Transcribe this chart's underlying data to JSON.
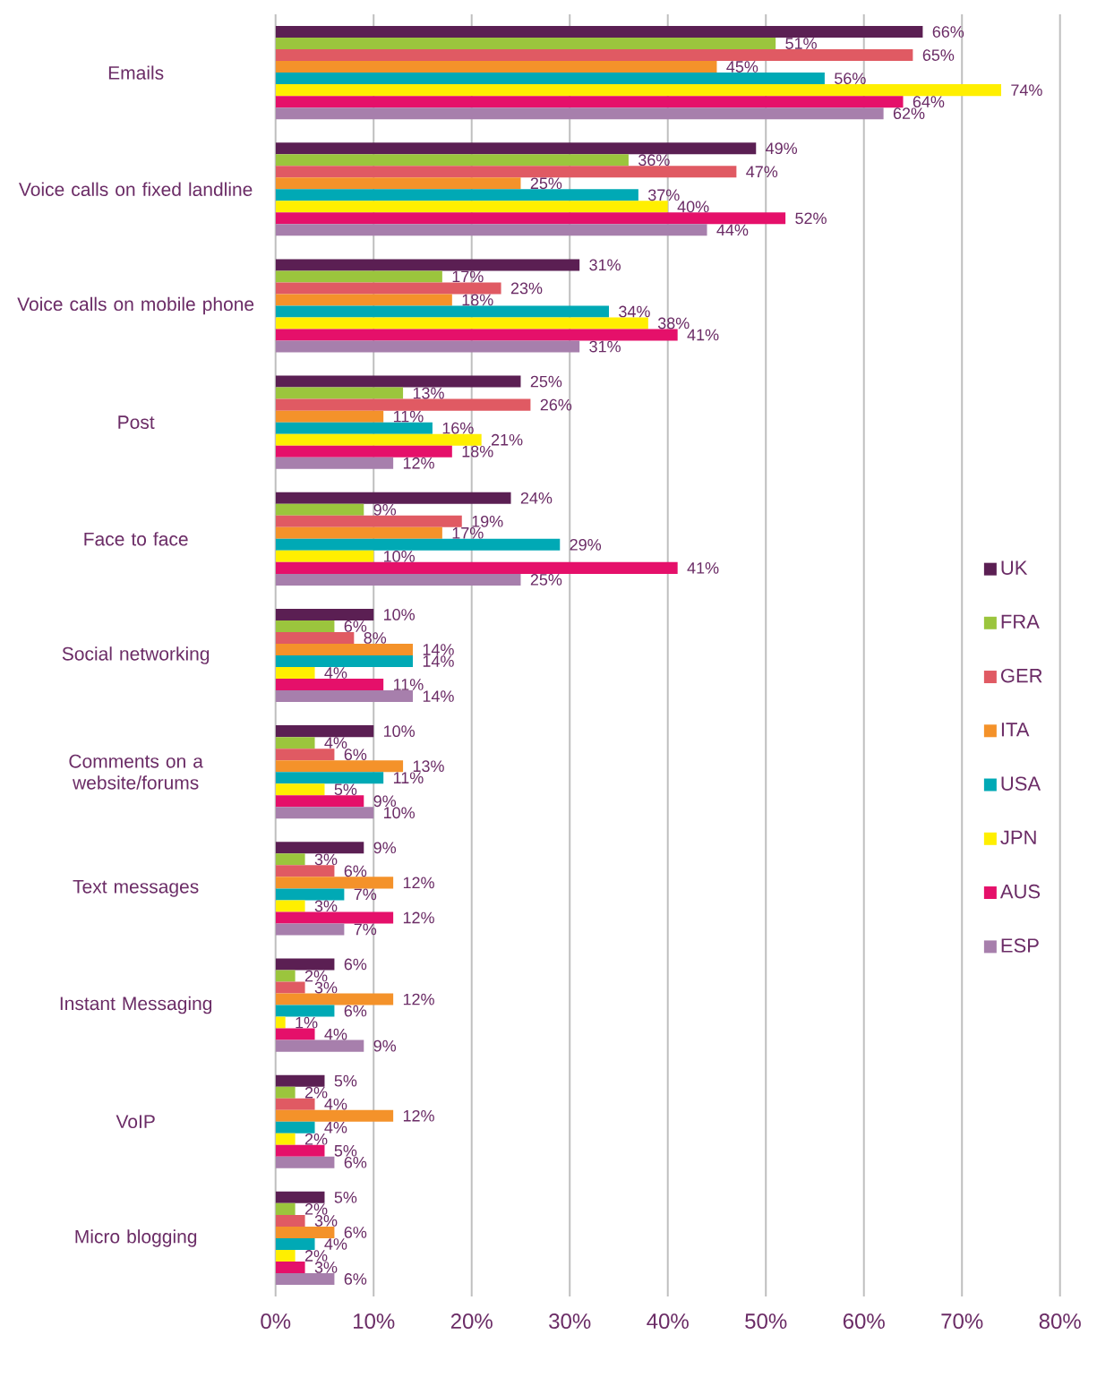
{
  "chart_data": {
    "type": "bar",
    "orientation": "horizontal",
    "categories": [
      "Emails",
      "Voice calls on fixed landline",
      "Voice calls on mobile phone",
      "Post",
      "Face to face",
      "Social networking",
      "Comments on a website/forums",
      "Text messages",
      "Instant Messaging",
      "VoIP",
      "Micro blogging"
    ],
    "series": [
      {
        "name": "UK",
        "color": "#5b1f53",
        "values": [
          66,
          49,
          31,
          25,
          24,
          10,
          10,
          9,
          6,
          5,
          5
        ],
        "value_labels": [
          "66%",
          "49%",
          "31%",
          "25%",
          "24%",
          "10%",
          "10%",
          "9%",
          "6%",
          "5%",
          "5%"
        ]
      },
      {
        "name": "FRA",
        "color": "#9bc53d",
        "values": [
          51,
          36,
          17,
          13,
          9,
          6,
          4,
          3,
          2,
          2,
          2
        ],
        "value_labels": [
          "51%",
          "36%",
          "17%",
          "13%",
          "9%",
          "6%",
          "4%",
          "3%",
          "2%",
          "2%",
          "2%"
        ]
      },
      {
        "name": "GER",
        "color": "#e05a63",
        "values": [
          65,
          47,
          23,
          26,
          19,
          8,
          6,
          6,
          3,
          4,
          3
        ],
        "value_labels": [
          "65%",
          "47%",
          "23%",
          "26%",
          "19%",
          "8%",
          "6%",
          "6%",
          "3%",
          "4%",
          "3%"
        ]
      },
      {
        "name": "ITA",
        "color": "#f4922a",
        "values": [
          45,
          25,
          18,
          11,
          17,
          14,
          13,
          12,
          12,
          12,
          6
        ],
        "value_labels": [
          "45%",
          "25%",
          "18%",
          "11%",
          "17%",
          "14%",
          "13%",
          "12%",
          "12%",
          "12%",
          "6%"
        ]
      },
      {
        "name": "USA",
        "color": "#00a9b5",
        "values": [
          56,
          37,
          34,
          16,
          29,
          14,
          11,
          7,
          6,
          4,
          4
        ],
        "value_labels": [
          "56%",
          "37%",
          "34%",
          "16%",
          "29%",
          "14%",
          "11%",
          "7%",
          "6%",
          "4%",
          "4%"
        ]
      },
      {
        "name": "JPN",
        "color": "#ffef00",
        "values": [
          74,
          40,
          38,
          21,
          10,
          4,
          5,
          3,
          1,
          2,
          2
        ],
        "value_labels": [
          "74%",
          "40%",
          "38%",
          "21%",
          "10%",
          "4%",
          "5%",
          "3%",
          "1%",
          "2%",
          "2%"
        ]
      },
      {
        "name": "AUS",
        "color": "#e5106a",
        "values": [
          64,
          52,
          41,
          18,
          41,
          11,
          9,
          12,
          4,
          5,
          3
        ],
        "value_labels": [
          "64%",
          "52%",
          "41%",
          "18%",
          "41%",
          "11%",
          "9%",
          "12%",
          "4%",
          "5%",
          "3%"
        ]
      },
      {
        "name": "ESP",
        "color": "#a77fac",
        "values": [
          62,
          44,
          31,
          12,
          25,
          14,
          10,
          7,
          9,
          6,
          6
        ],
        "value_labels": [
          "62%",
          "44%",
          "31%",
          "12%",
          "25%",
          "14%",
          "10%",
          "7%",
          "9%",
          "6%",
          "6%"
        ]
      }
    ],
    "xlim": [
      0,
      80
    ],
    "xticks": [
      {
        "value": 0,
        "label": "0%"
      },
      {
        "value": 10,
        "label": "10%"
      },
      {
        "value": 20,
        "label": "20%"
      },
      {
        "value": 30,
        "label": "30%"
      },
      {
        "value": 40,
        "label": "40%"
      },
      {
        "value": 50,
        "label": "50%"
      },
      {
        "value": 60,
        "label": "60%"
      },
      {
        "value": 70,
        "label": "70%"
      },
      {
        "value": 80,
        "label": "80%"
      }
    ],
    "grid": "x",
    "legend": "right"
  }
}
